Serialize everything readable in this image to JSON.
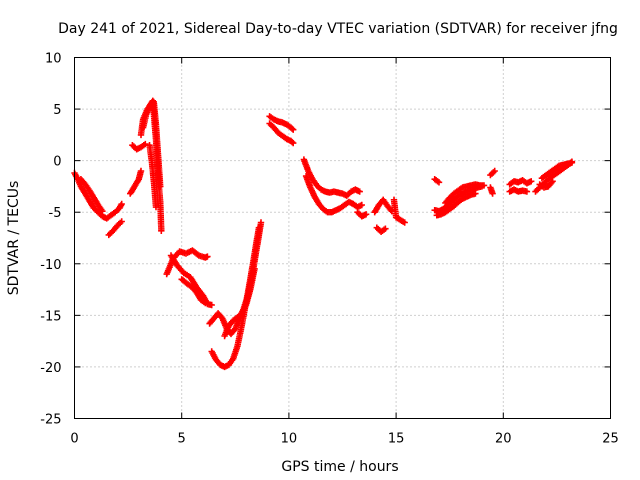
{
  "chart_data": {
    "type": "scatter",
    "title": "Day 241 of 2021, Sidereal Day-to-day VTEC variation (SDTVAR) for receiver jfng",
    "xlabel": "GPS time / hours",
    "ylabel": "SDTVAR / TECUs",
    "xlim": [
      0,
      25
    ],
    "ylim": [
      -25,
      10
    ],
    "xticks": [
      0,
      5,
      10,
      15,
      20,
      25
    ],
    "yticks": [
      -25,
      -20,
      -15,
      -10,
      -5,
      0,
      5,
      10
    ],
    "grid": true,
    "marker": "plus",
    "color": "#ff0000",
    "series": [
      {
        "name": "seg1",
        "x": [
          0.0,
          0.15,
          0.3,
          0.5,
          0.7,
          0.9,
          1.1,
          1.3,
          1.5,
          1.7,
          1.9,
          2.1,
          2.2
        ],
        "y": [
          -1.2,
          -1.8,
          -2.5,
          -3.2,
          -3.9,
          -4.6,
          -5.0,
          -5.4,
          -5.6,
          -5.3,
          -5.0,
          -4.6,
          -4.2
        ]
      },
      {
        "name": "seg2",
        "x": [
          0.3,
          0.5,
          0.7,
          0.9,
          1.1,
          1.3
        ],
        "y": [
          -1.8,
          -2.3,
          -2.9,
          -3.6,
          -4.3,
          -4.9
        ]
      },
      {
        "name": "seg3",
        "x": [
          1.6,
          1.8,
          2.0,
          2.2
        ],
        "y": [
          -7.2,
          -6.8,
          -6.3,
          -5.9
        ]
      },
      {
        "name": "seg4",
        "x": [
          2.6,
          2.8,
          3.0,
          3.1
        ],
        "y": [
          -3.2,
          -2.5,
          -1.8,
          -1.0
        ]
      },
      {
        "name": "seg5",
        "x": [
          2.7,
          2.9,
          3.1,
          3.3
        ],
        "y": [
          1.5,
          1.1,
          1.3,
          1.6
        ]
      },
      {
        "name": "seg6",
        "x": [
          3.1,
          3.2,
          3.4,
          3.6,
          3.7,
          3.8,
          3.9,
          4.0
        ],
        "y": [
          2.5,
          4.0,
          5.0,
          5.5,
          5.7,
          3.5,
          0.5,
          -2.5
        ]
      },
      {
        "name": "seg7",
        "x": [
          3.2,
          3.35,
          3.5,
          3.65,
          3.8,
          3.9,
          4.0,
          4.05
        ],
        "y": [
          3.2,
          4.5,
          5.3,
          5.8,
          2.0,
          -1.5,
          -4.0,
          -6.8
        ]
      },
      {
        "name": "seg8",
        "x": [
          3.5,
          3.6,
          3.7,
          3.8
        ],
        "y": [
          1.5,
          0.0,
          -2.0,
          -4.5
        ]
      },
      {
        "name": "seg9",
        "x": [
          4.3,
          4.6,
          4.9,
          5.2,
          5.5,
          5.8,
          6.1,
          6.2
        ],
        "y": [
          -11.0,
          -9.5,
          -8.8,
          -9.0,
          -8.7,
          -9.2,
          -9.4,
          -9.3
        ]
      },
      {
        "name": "seg10",
        "x": [
          4.5,
          4.8,
          5.1,
          5.4,
          5.7,
          6.0,
          6.2,
          6.4
        ],
        "y": [
          -9.2,
          -10.2,
          -10.9,
          -11.3,
          -12.3,
          -13.1,
          -13.9,
          -14.0
        ]
      },
      {
        "name": "seg11",
        "x": [
          5.0,
          5.3,
          5.5,
          5.7,
          5.9,
          6.1
        ],
        "y": [
          -11.5,
          -12.0,
          -12.3,
          -12.8,
          -13.5,
          -13.8
        ]
      },
      {
        "name": "seg12",
        "x": [
          6.3,
          6.5,
          6.7,
          6.9,
          7.1,
          7.3,
          7.5,
          7.7,
          7.9,
          8.1,
          8.3,
          8.5,
          8.7
        ],
        "y": [
          -15.8,
          -15.3,
          -14.8,
          -15.3,
          -16.3,
          -16.8,
          -16.3,
          -15.3,
          -14.3,
          -13.0,
          -11.0,
          -8.5,
          -6.0
        ]
      },
      {
        "name": "seg13",
        "x": [
          6.4,
          6.6,
          6.8,
          7.0,
          7.2,
          7.4,
          7.6,
          7.8,
          8.0,
          8.2,
          8.4,
          8.6
        ],
        "y": [
          -18.5,
          -19.3,
          -19.8,
          -20.0,
          -19.8,
          -19.2,
          -18.0,
          -16.0,
          -13.8,
          -11.5,
          -9.0,
          -6.5
        ]
      },
      {
        "name": "seg14",
        "x": [
          7.0,
          7.2,
          7.4,
          7.6,
          7.8,
          8.0,
          8.2,
          8.4
        ],
        "y": [
          -17.0,
          -16.0,
          -15.5,
          -15.2,
          -14.8,
          -14.0,
          -12.5,
          -10.5
        ]
      },
      {
        "name": "seg15",
        "x": [
          9.1,
          9.3,
          9.5,
          9.7,
          9.9,
          10.1,
          10.2
        ],
        "y": [
          4.3,
          4.0,
          3.8,
          3.7,
          3.5,
          3.2,
          3.0
        ]
      },
      {
        "name": "seg16",
        "x": [
          9.1,
          9.3,
          9.5,
          9.7,
          9.9,
          10.1,
          10.2
        ],
        "y": [
          3.6,
          3.2,
          2.7,
          2.4,
          2.1,
          1.9,
          1.7
        ]
      },
      {
        "name": "seg17",
        "x": [
          10.7,
          10.9,
          11.1,
          11.3,
          11.5,
          11.7,
          11.9,
          12.1,
          12.3,
          12.5,
          12.7,
          12.9,
          13.1,
          13.3
        ],
        "y": [
          0.1,
          -1.0,
          -1.8,
          -2.4,
          -2.8,
          -3.0,
          -3.1,
          -3.0,
          -3.1,
          -3.2,
          -3.4,
          -3.0,
          -2.8,
          -3.0
        ]
      },
      {
        "name": "seg18",
        "x": [
          10.8,
          11.0,
          11.2,
          11.4,
          11.6,
          11.8,
          12.0,
          12.2,
          12.4,
          12.6,
          12.8,
          13.0,
          13.2,
          13.4
        ],
        "y": [
          -1.5,
          -2.6,
          -3.5,
          -4.2,
          -4.7,
          -5.0,
          -5.0,
          -4.8,
          -4.6,
          -4.3,
          -4.0,
          -4.2,
          -4.5,
          -4.3
        ]
      },
      {
        "name": "seg19",
        "x": [
          13.2,
          13.4,
          13.6
        ],
        "y": [
          -5.0,
          -5.4,
          -5.2
        ]
      },
      {
        "name": "seg20",
        "x": [
          14.0,
          14.2,
          14.4,
          14.6,
          14.8
        ],
        "y": [
          -5.0,
          -4.3,
          -3.8,
          -4.4,
          -4.9
        ]
      },
      {
        "name": "seg21",
        "x": [
          14.1,
          14.3,
          14.5
        ],
        "y": [
          -6.5,
          -6.9,
          -6.6
        ]
      },
      {
        "name": "seg22",
        "x": [
          14.9,
          15.0,
          15.4
        ],
        "y": [
          -3.8,
          -5.5,
          -6.0
        ]
      },
      {
        "name": "seg23",
        "x": [
          16.8,
          17.0
        ],
        "y": [
          -1.8,
          -2.1
        ]
      },
      {
        "name": "seg24",
        "x": [
          16.8,
          17.0,
          17.2,
          17.4,
          17.6,
          17.8,
          18.0,
          18.2,
          18.4,
          18.6,
          18.8,
          19.0
        ],
        "y": [
          -4.8,
          -4.9,
          -4.7,
          -4.3,
          -4.0,
          -3.6,
          -3.3,
          -3.1,
          -2.9,
          -2.8,
          -2.6,
          -2.5
        ]
      },
      {
        "name": "seg25",
        "x": [
          16.9,
          17.1,
          17.3,
          17.5,
          17.7,
          17.9,
          18.1,
          18.3,
          18.5,
          18.7
        ],
        "y": [
          -5.3,
          -5.2,
          -5.0,
          -4.7,
          -4.4,
          -4.0,
          -3.7,
          -3.5,
          -3.3,
          -3.2
        ]
      },
      {
        "name": "seg26",
        "x": [
          17.3,
          17.5,
          17.7,
          17.9,
          18.1,
          18.3,
          18.5,
          18.7,
          18.9,
          19.1
        ],
        "y": [
          -4.1,
          -3.6,
          -3.2,
          -2.9,
          -2.6,
          -2.5,
          -2.4,
          -2.3,
          -2.4,
          -2.4
        ]
      },
      {
        "name": "seg27",
        "x": [
          19.4,
          19.5
        ],
        "y": [
          -2.6,
          -3.2
        ]
      },
      {
        "name": "seg28",
        "x": [
          19.4,
          19.6
        ],
        "y": [
          -1.4,
          -1.0
        ]
      },
      {
        "name": "seg29",
        "x": [
          20.3,
          20.5,
          20.7,
          20.9,
          21.1,
          21.3
        ],
        "y": [
          -2.3,
          -2.0,
          -2.1,
          -1.9,
          -2.2,
          -2.0
        ]
      },
      {
        "name": "seg30",
        "x": [
          20.3,
          20.5,
          20.7,
          20.9,
          21.1
        ],
        "y": [
          -3.0,
          -2.8,
          -3.0,
          -2.9,
          -3.0
        ]
      },
      {
        "name": "seg31",
        "x": [
          21.5,
          21.7,
          21.9,
          22.1,
          22.3,
          22.5,
          22.7,
          22.9,
          23.1,
          23.2
        ],
        "y": [
          -3.0,
          -2.6,
          -2.2,
          -1.8,
          -1.5,
          -1.2,
          -0.9,
          -0.6,
          -0.3,
          -0.1
        ]
      },
      {
        "name": "seg32",
        "x": [
          21.8,
          22.0,
          22.2,
          22.4,
          22.6,
          22.8,
          23.0,
          23.2
        ],
        "y": [
          -1.7,
          -1.4,
          -1.1,
          -0.8,
          -0.5,
          -0.4,
          -0.3,
          -0.2
        ]
      },
      {
        "name": "seg33",
        "x": [
          21.7,
          21.9,
          22.1,
          22.3
        ],
        "y": [
          -2.3,
          -2.6,
          -2.5,
          -2.0
        ]
      }
    ]
  }
}
